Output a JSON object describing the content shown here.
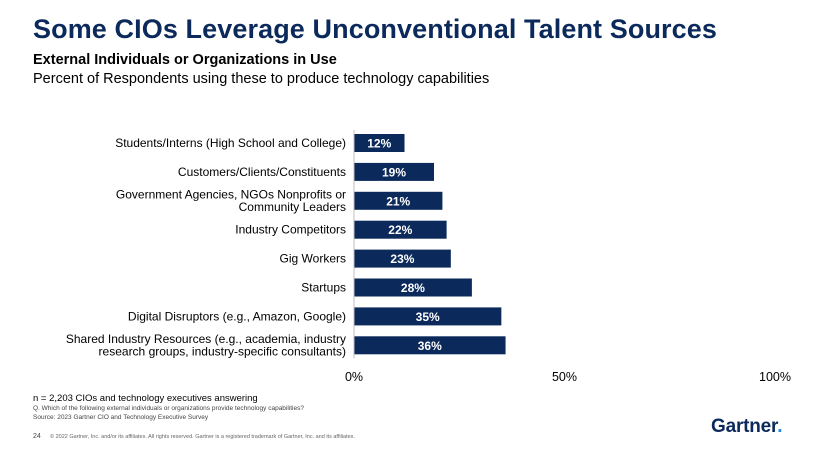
{
  "slide": {
    "title": "Some CIOs Leverage Unconventional Talent Sources",
    "subtitle": "External Individuals or Organizations in Use",
    "subtitle2": "Percent of Respondents using these to produce technology capabilities",
    "note": "n = 2,203 CIOs and technology executives answering",
    "question": "Q. Which of the following external individuals or organizations provide technology capabilities?",
    "source": "Source: 2023 Gartner CIO and Technology Executive Survey",
    "page_number": "24",
    "copyright": "© 2022 Gartner, Inc. and/or its affiliates. All rights reserved. Gartner is a registered trademark of Gartner, Inc. and its affiliates.",
    "logo_text": "Gartner",
    "logo_dot": "."
  },
  "colors": {
    "bar": "#0b2a5b",
    "title": "#0b2a5b",
    "logo_accent": "#1b8be0"
  },
  "chart_data": {
    "type": "bar",
    "orientation": "horizontal",
    "categories": [
      [
        "Students/Interns (High School and College)"
      ],
      [
        "Customers/Clients/Constituents"
      ],
      [
        "Government Agencies, NGOs Nonprofits or",
        "Community Leaders"
      ],
      [
        "Industry Competitors"
      ],
      [
        "Gig Workers"
      ],
      [
        "Startups"
      ],
      [
        "Digital Disruptors  (e.g., Amazon, Google)"
      ],
      [
        "Shared Industry Resources (e.g., academia, industry",
        "research groups, industry-specific consultants)"
      ]
    ],
    "values": [
      12,
      19,
      21,
      22,
      23,
      28,
      35,
      36
    ],
    "value_labels": [
      "12%",
      "19%",
      "21%",
      "22%",
      "23%",
      "28%",
      "35%",
      "36%"
    ],
    "xlim": [
      0,
      100
    ],
    "xticks": [
      0,
      50,
      100
    ],
    "xtick_labels": [
      "0%",
      "50%",
      "100%"
    ],
    "xlabel": "",
    "ylabel": "",
    "grid": false,
    "legend": "none"
  }
}
